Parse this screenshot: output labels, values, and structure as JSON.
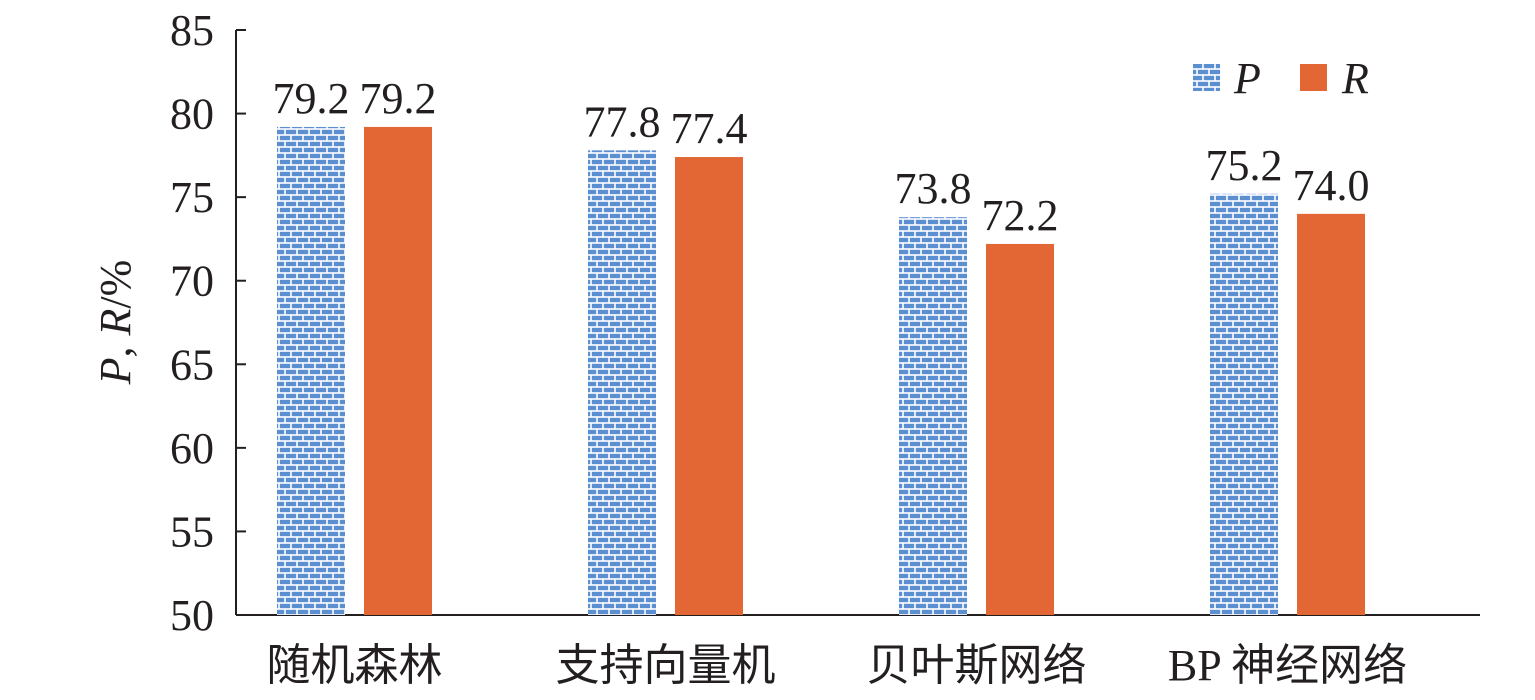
{
  "chart_data": {
    "type": "bar",
    "categories": [
      "随机森林",
      "支持向量机",
      "贝叶斯网络",
      "BP 神经网络"
    ],
    "series": [
      {
        "name": "P",
        "values": [
          79.2,
          77.8,
          73.8,
          75.2
        ],
        "labels": [
          "79.2",
          "77.8",
          "73.8",
          "75.2"
        ],
        "color": "#5b8fd0",
        "pattern": "bricks"
      },
      {
        "name": "R",
        "values": [
          79.2,
          77.4,
          72.2,
          74.0
        ],
        "labels": [
          "79.2",
          "77.4",
          "72.2",
          "74.0"
        ],
        "color": "#e26735",
        "pattern": "solid"
      }
    ],
    "ylabel_parts": [
      "P",
      ", ",
      "R",
      "/%"
    ],
    "yticks": [
      "50",
      "55",
      "60",
      "65",
      "70",
      "75",
      "80",
      "85"
    ],
    "ylim": [
      50,
      85
    ],
    "grid": false,
    "legend_position": "top-right"
  }
}
